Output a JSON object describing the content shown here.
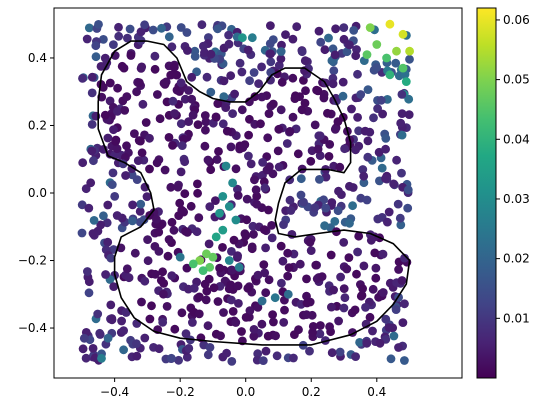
{
  "chart_data": {
    "type": "scatter",
    "title": "",
    "xlabel": "",
    "ylabel": "",
    "xlim": [
      -0.585,
      0.66
    ],
    "ylim": [
      -0.548,
      0.548
    ],
    "x_ticks": [
      -0.4,
      -0.2,
      0.0,
      0.2,
      0.4
    ],
    "x_tick_labels": [
      "−0.4",
      "−0.2",
      "0.0",
      "0.2",
      "0.4"
    ],
    "y_ticks": [
      -0.4,
      -0.2,
      0.0,
      0.2,
      0.4
    ],
    "y_tick_labels": [
      "−0.4",
      "−0.2",
      "0.0",
      "0.2",
      "0.4"
    ],
    "grid": false,
    "legend": "none",
    "colormap": "viridis",
    "colorbar": {
      "range": [
        0.0,
        0.062
      ],
      "ticks": [
        0.01,
        0.02,
        0.03,
        0.04,
        0.05,
        0.06
      ],
      "tick_labels": [
        "0.01",
        "0.02",
        "0.03",
        "0.04",
        "0.05",
        "0.06"
      ]
    },
    "scatter_sample_size": 900,
    "highlight_points": [
      {
        "x": 0.44,
        "y": 0.5,
        "value": 0.06
      },
      {
        "x": 0.48,
        "y": 0.47,
        "value": 0.058
      },
      {
        "x": 0.38,
        "y": 0.49,
        "value": 0.05
      },
      {
        "x": 0.4,
        "y": 0.44,
        "value": 0.048
      },
      {
        "x": 0.46,
        "y": 0.42,
        "value": 0.052
      },
      {
        "x": 0.5,
        "y": 0.42,
        "value": 0.055
      },
      {
        "x": 0.37,
        "y": 0.41,
        "value": 0.046
      },
      {
        "x": 0.43,
        "y": 0.4,
        "value": 0.044
      },
      {
        "x": 0.48,
        "y": 0.37,
        "value": 0.045
      },
      {
        "x": 0.44,
        "y": 0.35,
        "value": 0.04
      },
      {
        "x": 0.49,
        "y": 0.33,
        "value": 0.038
      },
      {
        "x": -0.14,
        "y": -0.2,
        "value": 0.05
      },
      {
        "x": -0.12,
        "y": -0.18,
        "value": 0.048
      },
      {
        "x": -0.11,
        "y": -0.22,
        "value": 0.046
      },
      {
        "x": -0.16,
        "y": -0.21,
        "value": 0.044
      },
      {
        "x": -0.1,
        "y": -0.19,
        "value": 0.047
      },
      {
        "x": -0.13,
        "y": -0.23,
        "value": 0.043
      },
      {
        "x": -0.09,
        "y": -0.13,
        "value": 0.036
      },
      {
        "x": -0.07,
        "y": -0.11,
        "value": 0.034
      },
      {
        "x": -0.08,
        "y": -0.06,
        "value": 0.032
      },
      {
        "x": -0.05,
        "y": -0.04,
        "value": 0.03
      },
      {
        "x": -0.07,
        "y": -0.01,
        "value": 0.031
      },
      {
        "x": -0.04,
        "y": 0.03,
        "value": 0.029
      },
      {
        "x": -0.06,
        "y": 0.08,
        "value": 0.028
      },
      {
        "x": -0.03,
        "y": -0.08,
        "value": 0.03
      },
      {
        "x": -0.01,
        "y": 0.46,
        "value": 0.032
      },
      {
        "x": 0.02,
        "y": 0.46,
        "value": 0.026
      },
      {
        "x": -0.05,
        "y": -0.2,
        "value": 0.028
      },
      {
        "x": -0.02,
        "y": -0.22,
        "value": 0.026
      },
      {
        "x": 0.05,
        "y": -0.32,
        "value": 0.022
      },
      {
        "x": 0.09,
        "y": -0.31,
        "value": 0.024
      },
      {
        "x": 0.13,
        "y": -0.3,
        "value": 0.022
      },
      {
        "x": -0.44,
        "y": -0.49,
        "value": 0.026
      },
      {
        "x": -0.42,
        "y": -0.43,
        "value": 0.02
      },
      {
        "x": -0.2,
        "y": -0.19,
        "value": 0.024
      }
    ],
    "contour": [
      [
        -0.3,
        0.45
      ],
      [
        -0.25,
        0.44
      ],
      [
        -0.21,
        0.4
      ],
      [
        -0.18,
        0.33
      ],
      [
        -0.14,
        0.3
      ],
      [
        -0.1,
        0.28
      ],
      [
        -0.05,
        0.27
      ],
      [
        0.0,
        0.27
      ],
      [
        0.04,
        0.3
      ],
      [
        0.08,
        0.35
      ],
      [
        0.12,
        0.37
      ],
      [
        0.18,
        0.37
      ],
      [
        0.24,
        0.33
      ],
      [
        0.27,
        0.28
      ],
      [
        0.3,
        0.22
      ],
      [
        0.32,
        0.15
      ],
      [
        0.32,
        0.09
      ],
      [
        0.3,
        0.06
      ],
      [
        0.25,
        0.07
      ],
      [
        0.17,
        0.07
      ],
      [
        0.12,
        0.03
      ],
      [
        0.1,
        -0.03
      ],
      [
        0.09,
        -0.08
      ],
      [
        0.1,
        -0.12
      ],
      [
        0.15,
        -0.13
      ],
      [
        0.22,
        -0.12
      ],
      [
        0.3,
        -0.11
      ],
      [
        0.38,
        -0.12
      ],
      [
        0.45,
        -0.15
      ],
      [
        0.5,
        -0.2
      ],
      [
        0.49,
        -0.27
      ],
      [
        0.45,
        -0.33
      ],
      [
        0.4,
        -0.38
      ],
      [
        0.32,
        -0.42
      ],
      [
        0.2,
        -0.45
      ],
      [
        0.05,
        -0.45
      ],
      [
        -0.1,
        -0.44
      ],
      [
        -0.2,
        -0.43
      ],
      [
        -0.28,
        -0.41
      ],
      [
        -0.34,
        -0.37
      ],
      [
        -0.38,
        -0.31
      ],
      [
        -0.4,
        -0.24
      ],
      [
        -0.4,
        -0.19
      ],
      [
        -0.38,
        -0.13
      ],
      [
        -0.32,
        -0.1
      ],
      [
        -0.28,
        -0.05
      ],
      [
        -0.29,
        0.0
      ],
      [
        -0.32,
        0.06
      ],
      [
        -0.37,
        0.09
      ],
      [
        -0.42,
        0.11
      ],
      [
        -0.45,
        0.19
      ],
      [
        -0.45,
        0.27
      ],
      [
        -0.44,
        0.35
      ],
      [
        -0.4,
        0.42
      ],
      [
        -0.35,
        0.45
      ],
      [
        -0.3,
        0.45
      ]
    ]
  }
}
